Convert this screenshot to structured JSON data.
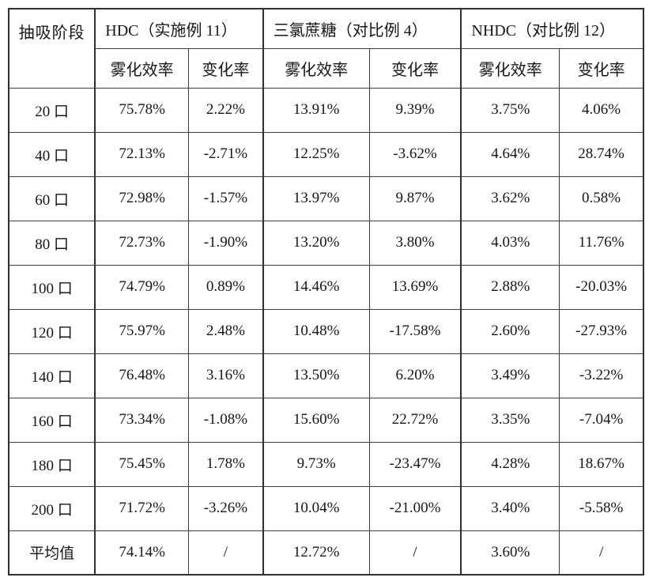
{
  "table": {
    "corner_header": "抽吸阶段",
    "groups": [
      {
        "label": "HDC（实施例 11）"
      },
      {
        "label": "三氯蔗糖（对比例 4）"
      },
      {
        "label": "NHDC（对比例 12）"
      }
    ],
    "sub_headers": [
      "雾化效率",
      "变化率"
    ],
    "rows": [
      {
        "stage": "20 口",
        "values": [
          "75.78%",
          "2.22%",
          "13.91%",
          "9.39%",
          "3.75%",
          "4.06%"
        ]
      },
      {
        "stage": "40 口",
        "values": [
          "72.13%",
          "-2.71%",
          "12.25%",
          "-3.62%",
          "4.64%",
          "28.74%"
        ]
      },
      {
        "stage": "60 口",
        "values": [
          "72.98%",
          "-1.57%",
          "13.97%",
          "9.87%",
          "3.62%",
          "0.58%"
        ]
      },
      {
        "stage": "80 口",
        "values": [
          "72.73%",
          "-1.90%",
          "13.20%",
          "3.80%",
          "4.03%",
          "11.76%"
        ]
      },
      {
        "stage": "100 口",
        "values": [
          "74.79%",
          "0.89%",
          "14.46%",
          "13.69%",
          "2.88%",
          "-20.03%"
        ]
      },
      {
        "stage": "120 口",
        "values": [
          "75.97%",
          "2.48%",
          "10.48%",
          "-17.58%",
          "2.60%",
          "-27.93%"
        ]
      },
      {
        "stage": "140 口",
        "values": [
          "76.48%",
          "3.16%",
          "13.50%",
          "6.20%",
          "3.49%",
          "-3.22%"
        ]
      },
      {
        "stage": "160 口",
        "values": [
          "73.34%",
          "-1.08%",
          "15.60%",
          "22.72%",
          "3.35%",
          "-7.04%"
        ]
      },
      {
        "stage": "180 口",
        "values": [
          "75.45%",
          "1.78%",
          "9.73%",
          "-23.47%",
          "4.28%",
          "18.67%"
        ]
      },
      {
        "stage": "200 口",
        "values": [
          "71.72%",
          "-3.26%",
          "10.04%",
          "-21.00%",
          "3.40%",
          "-5.58%"
        ]
      },
      {
        "stage": "平均值",
        "values": [
          "74.14%",
          "/",
          "12.72%",
          "/",
          "3.60%",
          "/"
        ]
      }
    ]
  }
}
